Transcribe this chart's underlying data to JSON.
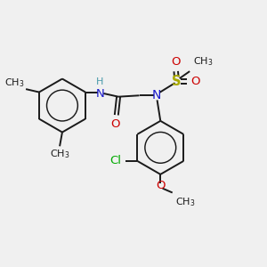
{
  "bg_color": "#f0f0f0",
  "bond_color": "#1a1a1a",
  "colors": {
    "N": "#1a1acc",
    "O": "#cc0000",
    "S": "#aaaa00",
    "Cl": "#00aa00",
    "C": "#1a1a1a",
    "H": "#4a9aaa"
  },
  "font_size": 8.5,
  "lw": 1.4
}
